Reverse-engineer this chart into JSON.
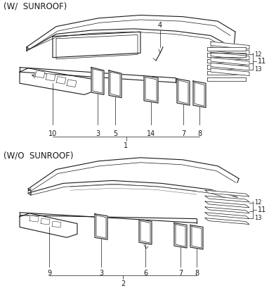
{
  "title_top": "(W/  SUNROOF)",
  "title_bottom": "(W/O  SUNROOF)",
  "bg_color": "#ffffff",
  "line_color": "#1a1a1a",
  "label_fontsize": 7,
  "title_fontsize": 8.5
}
